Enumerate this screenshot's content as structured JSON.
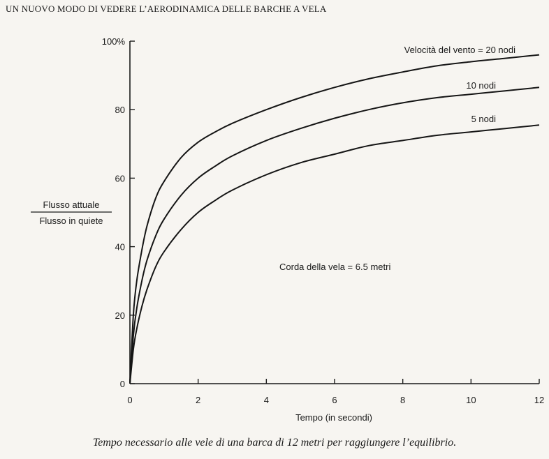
{
  "header": "Un nuovo modo di vedere l’aerodinamica delle barche a vela",
  "caption": "Tempo necessario alle vele di una barca di 12 metri per raggiungere l’equilibrio.",
  "chart_data": {
    "type": "line",
    "xlabel": "Tempo (in secondi)",
    "ylabel_numerator": "Flusso attuale",
    "ylabel_denominator": "Flusso in quiete",
    "xlim": [
      0,
      12
    ],
    "ylim": [
      0,
      100
    ],
    "x_ticks": [
      "0",
      "2",
      "4",
      "6",
      "8",
      "10",
      "12"
    ],
    "y_ticks": [
      "0",
      "20",
      "40",
      "60",
      "80",
      "100%"
    ],
    "annotation": "Corda della vela = 6.5 metri",
    "grid": false,
    "series": [
      {
        "name": "Velocità del vento = 20 nodi",
        "x": [
          0,
          0.1,
          0.2,
          0.35,
          0.5,
          0.75,
          1,
          1.5,
          2,
          2.5,
          3,
          4,
          5,
          6,
          7,
          8,
          9,
          10,
          11,
          12
        ],
        "y": [
          0,
          20,
          30,
          39,
          46,
          54,
          59,
          66,
          70.5,
          73.5,
          76,
          80,
          83.5,
          86.5,
          89,
          91,
          92.8,
          94,
          95,
          96
        ]
      },
      {
        "name": "10 nodi",
        "x": [
          0,
          0.1,
          0.2,
          0.35,
          0.5,
          0.75,
          1,
          1.5,
          2,
          2.5,
          3,
          4,
          5,
          6,
          7,
          8,
          9,
          10,
          11,
          12
        ],
        "y": [
          0,
          14,
          22,
          30,
          36,
          43,
          48,
          55,
          60,
          63.5,
          66.5,
          71,
          74.5,
          77.5,
          80,
          82,
          83.5,
          84.5,
          85.5,
          86.5
        ]
      },
      {
        "name": "5 nodi",
        "x": [
          0,
          0.1,
          0.2,
          0.35,
          0.5,
          0.75,
          1,
          1.5,
          2,
          2.5,
          3,
          4,
          5,
          6,
          7,
          8,
          9,
          10,
          11,
          12
        ],
        "y": [
          0,
          10,
          16,
          22.5,
          27.5,
          34,
          38.5,
          45,
          50,
          53.5,
          56.5,
          61,
          64.5,
          67,
          69.5,
          71,
          72.5,
          73.5,
          74.5,
          75.5
        ]
      }
    ]
  }
}
